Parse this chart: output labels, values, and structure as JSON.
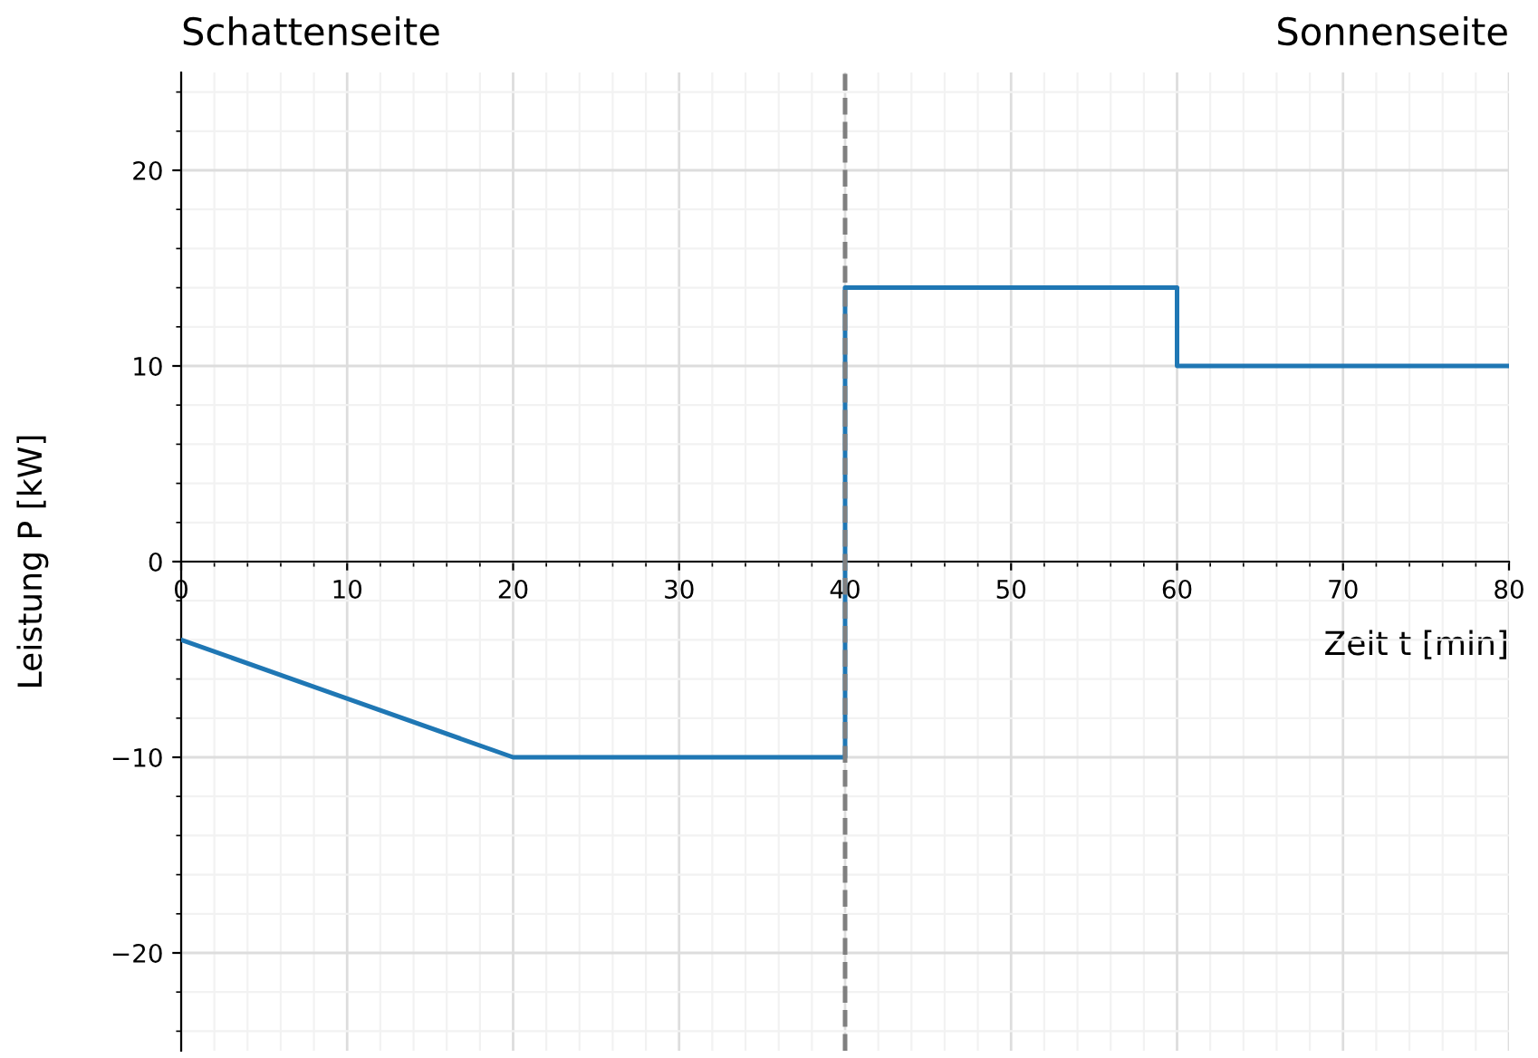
{
  "chart_data": {
    "type": "line",
    "xlabel": "Zeit t [min]",
    "ylabel": "Leistung P [kW]",
    "annotations": [
      "Schattenseite",
      "Sonnenseite"
    ],
    "series": [
      {
        "color": "#1f77b4",
        "x": [
          0,
          20,
          40,
          40,
          60,
          60,
          80
        ],
        "values": [
          -4,
          -10,
          -10,
          14,
          14,
          10,
          10
        ]
      }
    ],
    "xlim": [
      0,
      80
    ],
    "ylim": [
      -25,
      25
    ],
    "xticks": [
      0,
      10,
      20,
      30,
      40,
      50,
      60,
      70,
      80
    ],
    "yticks": [
      -20,
      -10,
      0,
      10,
      20
    ],
    "ref_lines": [
      {
        "axis": "x",
        "value": 40,
        "color": "#808080",
        "line_style": "dashed"
      }
    ],
    "grid": true,
    "marker": "none",
    "line_style": "solid",
    "legend": false
  }
}
